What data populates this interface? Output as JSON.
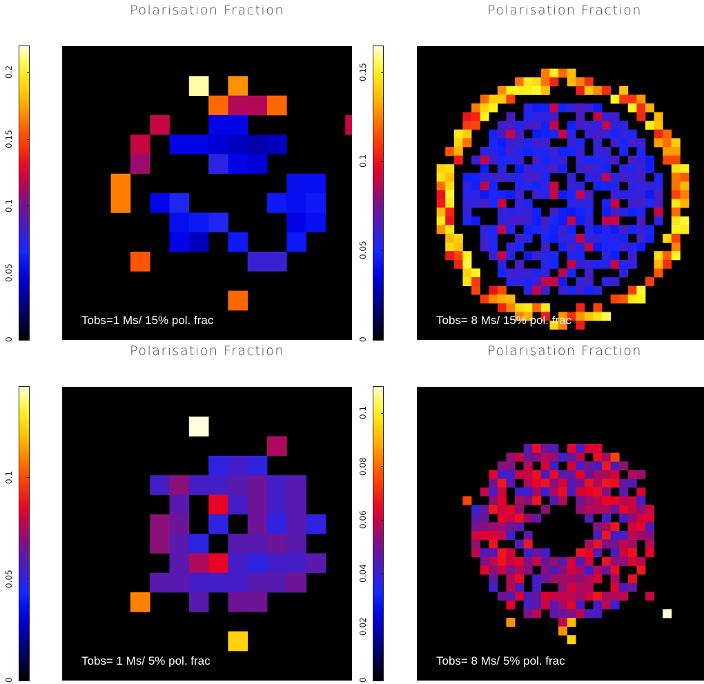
{
  "panels": [
    {
      "title": "Polarisation Fraction",
      "annotation": "Tobs=1 Ms/ 15% pol. frac",
      "colorbar": {
        "min": 0,
        "max": 0.22,
        "ticks": [
          "0",
          "0.05",
          "0.1",
          "0.15",
          "0.2"
        ],
        "tick_values": [
          0,
          0.05,
          0.1,
          0.15,
          0.2
        ]
      },
      "grid_size": 15,
      "pixels": [
        [
          6,
          1,
          0.215
        ],
        [
          8,
          1,
          0.17
        ],
        [
          7,
          2,
          0.16
        ],
        [
          8,
          2,
          0.115
        ],
        [
          9,
          2,
          0.115
        ],
        [
          10,
          2,
          0.16
        ],
        [
          4,
          3,
          0.12
        ],
        [
          7,
          3,
          0.05
        ],
        [
          8,
          3,
          0.05
        ],
        [
          14,
          3,
          0.12
        ],
        [
          3,
          4,
          0.12
        ],
        [
          5,
          4,
          0.05
        ],
        [
          6,
          4,
          0.05
        ],
        [
          7,
          4,
          0.045
        ],
        [
          8,
          4,
          0.04
        ],
        [
          9,
          4,
          0.035
        ],
        [
          10,
          4,
          0.04
        ],
        [
          3,
          5,
          0.11
        ],
        [
          7,
          5,
          0.075
        ],
        [
          8,
          5,
          0.05
        ],
        [
          9,
          5,
          0.045
        ],
        [
          2,
          6,
          0.165
        ],
        [
          11,
          6,
          0.055
        ],
        [
          12,
          6,
          0.055
        ],
        [
          2,
          7,
          0.165
        ],
        [
          4,
          7,
          0.05
        ],
        [
          5,
          7,
          0.07
        ],
        [
          10,
          7,
          0.06
        ],
        [
          11,
          7,
          0.055
        ],
        [
          12,
          7,
          0.06
        ],
        [
          5,
          8,
          0.055
        ],
        [
          6,
          8,
          0.06
        ],
        [
          7,
          8,
          0.07
        ],
        [
          11,
          8,
          0.05
        ],
        [
          12,
          8,
          0.055
        ],
        [
          5,
          9,
          0.05
        ],
        [
          6,
          9,
          0.04
        ],
        [
          8,
          9,
          0.06
        ],
        [
          11,
          9,
          0.06
        ],
        [
          3,
          10,
          0.155
        ],
        [
          9,
          10,
          0.08
        ],
        [
          10,
          10,
          0.08
        ],
        [
          8,
          12,
          0.16
        ]
      ]
    },
    {
      "title": "Polarisation Fraction",
      "annotation": "Tobs= 8 Ms/ 15% pol. frac",
      "colorbar": {
        "min": 0,
        "max": 0.165,
        "ticks": [
          "0",
          "0.05",
          "0.1",
          "0.15"
        ],
        "tick_values": [
          0,
          0.05,
          0.1,
          0.15
        ]
      },
      "grid_size": 32,
      "model": {
        "ring": {
          "cx": 15.5,
          "cy": 16.0,
          "r_inner": 12.6,
          "r_outer": 14.7,
          "value_low": 0.1,
          "value_high": 0.155
        },
        "disk": {
          "radius": 11.4,
          "fill_fraction": 0.78,
          "value_low": 0.045,
          "value_high": 0.065,
          "speckle_value": 0.09
        },
        "seed": 7
      }
    },
    {
      "title": "Polarisation Fraction",
      "annotation": "Tobs= 1 Ms/ 5% pol. frac",
      "colorbar": {
        "min": 0,
        "max": 0.145,
        "ticks": [
          "0",
          "0.05",
          "0.1"
        ],
        "tick_values": [
          0,
          0.05,
          0.1
        ]
      },
      "grid_size": 15,
      "pixels": [
        [
          6,
          1,
          0.145
        ],
        [
          10,
          2,
          0.075
        ],
        [
          7,
          3,
          0.05
        ],
        [
          8,
          3,
          0.055
        ],
        [
          9,
          3,
          0.05
        ],
        [
          4,
          4,
          0.055
        ],
        [
          5,
          4,
          0.07
        ],
        [
          6,
          4,
          0.055
        ],
        [
          7,
          4,
          0.055
        ],
        [
          8,
          4,
          0.06
        ],
        [
          9,
          4,
          0.065
        ],
        [
          10,
          4,
          0.055
        ],
        [
          11,
          4,
          0.06
        ],
        [
          5,
          5,
          0.06
        ],
        [
          7,
          5,
          0.085
        ],
        [
          8,
          5,
          0.055
        ],
        [
          9,
          5,
          0.065
        ],
        [
          10,
          5,
          0.055
        ],
        [
          11,
          5,
          0.06
        ],
        [
          4,
          6,
          0.07
        ],
        [
          5,
          6,
          0.065
        ],
        [
          7,
          6,
          0.05
        ],
        [
          9,
          6,
          0.065
        ],
        [
          10,
          6,
          0.05
        ],
        [
          11,
          6,
          0.06
        ],
        [
          12,
          6,
          0.05
        ],
        [
          4,
          7,
          0.07
        ],
        [
          5,
          7,
          0.06
        ],
        [
          6,
          7,
          0.05
        ],
        [
          8,
          7,
          0.06
        ],
        [
          9,
          7,
          0.06
        ],
        [
          10,
          7,
          0.065
        ],
        [
          11,
          7,
          0.06
        ],
        [
          5,
          8,
          0.06
        ],
        [
          6,
          8,
          0.075
        ],
        [
          7,
          8,
          0.085
        ],
        [
          8,
          8,
          0.055
        ],
        [
          9,
          8,
          0.05
        ],
        [
          10,
          8,
          0.055
        ],
        [
          11,
          8,
          0.055
        ],
        [
          12,
          8,
          0.06
        ],
        [
          4,
          9,
          0.06
        ],
        [
          5,
          9,
          0.06
        ],
        [
          6,
          9,
          0.055
        ],
        [
          7,
          9,
          0.055
        ],
        [
          8,
          9,
          0.055
        ],
        [
          9,
          9,
          0.06
        ],
        [
          10,
          9,
          0.06
        ],
        [
          11,
          9,
          0.065
        ],
        [
          3,
          10,
          0.11
        ],
        [
          6,
          10,
          0.06
        ],
        [
          8,
          10,
          0.065
        ],
        [
          9,
          10,
          0.065
        ],
        [
          8,
          12,
          0.125
        ]
      ]
    },
    {
      "title": "Polarisation Fraction",
      "annotation": "Tobs= 8 Ms/ 5% pol. frac",
      "colorbar": {
        "min": 0,
        "max": 0.11,
        "ticks": [
          "0",
          "0.02",
          "0.04",
          "0.06",
          "0.08",
          "0.1"
        ],
        "tick_values": [
          0,
          0.02,
          0.04,
          0.06,
          0.08,
          0.1
        ]
      },
      "grid_size": 32,
      "model": {
        "ring": {
          "cx": 15.5,
          "cy": 15.0,
          "r_inner": 3.2,
          "r_outer": 10.5,
          "value_low": 0.04,
          "value_high": 0.068
        },
        "extras": [
          [
            4,
            11,
            0.075
          ],
          [
            21,
            6,
            0.075
          ],
          [
            24,
            8,
            0.055
          ],
          [
            25,
            22,
            0.06
          ],
          [
            9,
            25,
            0.085
          ],
          [
            15,
            26,
            0.085
          ],
          [
            16,
            25,
            0.09
          ],
          [
            16,
            27,
            0.095
          ],
          [
            27,
            24,
            0.11
          ]
        ],
        "seed": 13
      }
    }
  ]
}
